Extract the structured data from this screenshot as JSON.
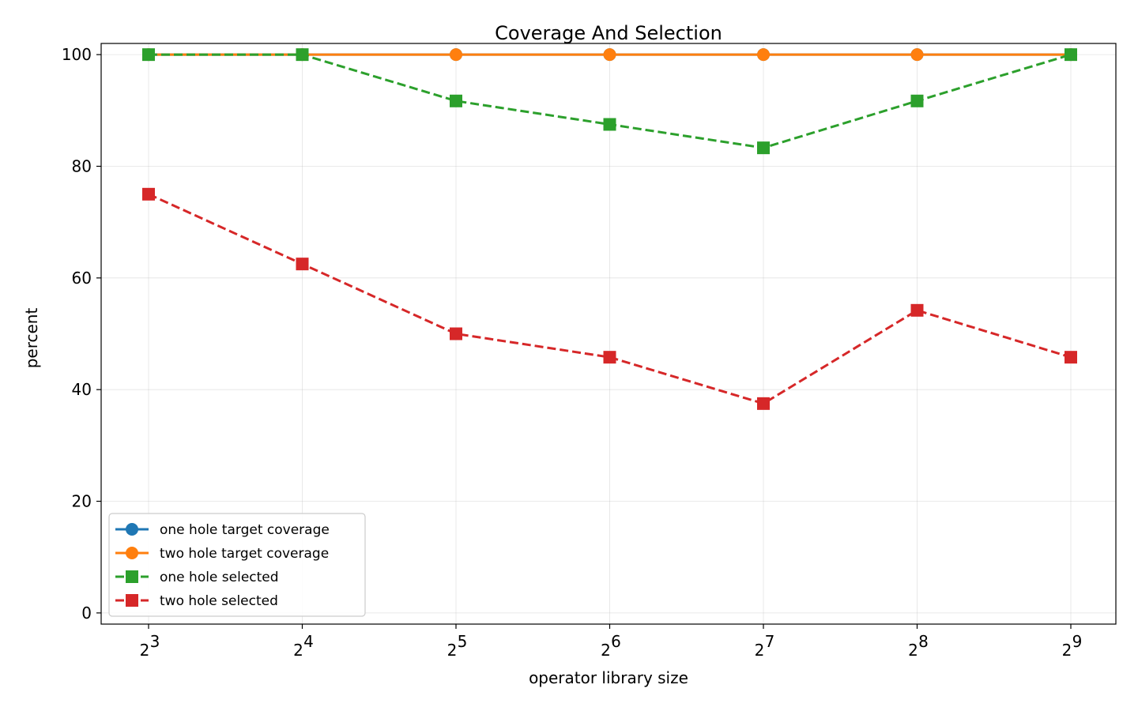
{
  "chart_data": {
    "type": "line",
    "title": "Coverage And Selection",
    "xlabel": "operator library size",
    "ylabel": "percent",
    "x_scale": "log2",
    "x": [
      8,
      16,
      32,
      64,
      128,
      256,
      512
    ],
    "x_tick_labels": [
      {
        "base": "2",
        "exp": "3"
      },
      {
        "base": "2",
        "exp": "4"
      },
      {
        "base": "2",
        "exp": "5"
      },
      {
        "base": "2",
        "exp": "6"
      },
      {
        "base": "2",
        "exp": "7"
      },
      {
        "base": "2",
        "exp": "8"
      },
      {
        "base": "2",
        "exp": "9"
      }
    ],
    "y_ticks": [
      0,
      20,
      40,
      60,
      80,
      100
    ],
    "ylim": [
      -2,
      102
    ],
    "grid": true,
    "legend_position": "lower-left",
    "series": [
      {
        "name": "one hole target coverage",
        "values": [
          100,
          100,
          100,
          100,
          100,
          100,
          100
        ],
        "color": "#1f77b4",
        "marker": "circle",
        "linestyle": "solid"
      },
      {
        "name": "two hole target coverage",
        "values": [
          100,
          100,
          100,
          100,
          100,
          100,
          100
        ],
        "color": "#ff7f0e",
        "marker": "circle",
        "linestyle": "solid"
      },
      {
        "name": "one hole selected",
        "values": [
          100,
          100,
          91.7,
          87.5,
          83.3,
          91.7,
          100
        ],
        "color": "#2ca02c",
        "marker": "square",
        "linestyle": "dashed"
      },
      {
        "name": "two hole selected",
        "values": [
          75,
          62.5,
          50,
          45.8,
          37.5,
          54.2,
          45.8
        ],
        "color": "#d62728",
        "marker": "square",
        "linestyle": "dashed"
      }
    ]
  }
}
